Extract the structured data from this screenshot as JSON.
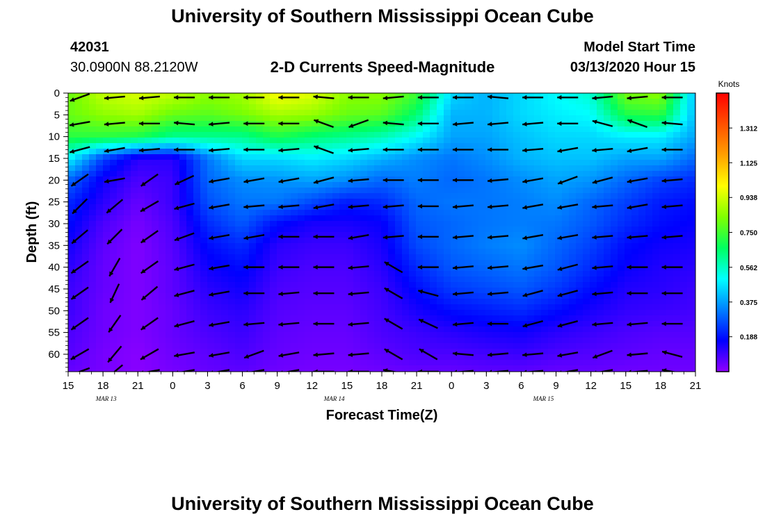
{
  "header": {
    "title_top": "University of Southern Mississippi Ocean Cube",
    "title_bottom": "University of Southern Mississippi Ocean Cube",
    "station_id": "42031",
    "station_coords": "30.0900N 88.2120W",
    "plot_title": "2-D Currents Speed-Magnitude",
    "model_start_label": "Model Start Time",
    "model_start_value": "03/13/2020 Hour 15"
  },
  "chart_data": {
    "type": "heatmap",
    "title": "2-D Currents Speed-Magnitude",
    "xlabel": "Forecast Time(Z)",
    "ylabel": "Depth (ft)",
    "x_tick_labels": [
      "15",
      "18",
      "21",
      "0",
      "3",
      "6",
      "9",
      "12",
      "15",
      "18",
      "21",
      "0",
      "3",
      "6",
      "9",
      "12",
      "15",
      "18",
      "21"
    ],
    "x_date_labels": [
      {
        "text": "MAR 13",
        "at_hour": 19
      },
      {
        "text": "MAR 14",
        "at_hour": 43
      },
      {
        "text": "MAR 15",
        "at_hour": 65
      }
    ],
    "x_range_hours": [
      0,
      54
    ],
    "y_ticks": [
      0,
      5,
      10,
      15,
      20,
      25,
      30,
      35,
      40,
      45,
      50,
      55,
      60
    ],
    "y_range": [
      0,
      64
    ],
    "y_inverted": true,
    "colorbar": {
      "unit": "Knots",
      "range": [
        0,
        1.5
      ],
      "ticks": [
        "1.312",
        "1.125",
        "0.938",
        "0.750",
        "0.562",
        "0.375",
        "0.188"
      ],
      "tick_values": [
        1.312,
        1.125,
        0.938,
        0.75,
        0.562,
        0.375,
        0.188
      ],
      "colors": [
        "#9000ff",
        "#0000ff",
        "#0080ff",
        "#00ffff",
        "#00ff60",
        "#80ff00",
        "#ffff00",
        "#ffa000",
        "#ff5000",
        "#ff0000"
      ]
    },
    "speed_samples": {
      "hours": [
        0,
        3,
        6,
        9,
        12,
        15,
        18,
        21,
        24,
        27,
        30,
        33,
        36,
        39,
        42,
        45,
        48,
        51,
        54
      ],
      "depths": [
        0,
        5,
        10,
        15,
        20,
        25,
        30,
        35,
        40,
        45,
        50,
        55,
        60,
        64
      ],
      "values_knots": [
        [
          0.8,
          0.92,
          0.95,
          0.92,
          0.85,
          0.88,
          1.0,
          0.96,
          0.85,
          0.85,
          0.75,
          0.45,
          0.4,
          0.45,
          0.5,
          0.55,
          0.82,
          0.85,
          0.4
        ],
        [
          0.8,
          0.85,
          0.88,
          0.8,
          0.78,
          0.82,
          0.88,
          0.86,
          0.8,
          0.78,
          0.65,
          0.4,
          0.4,
          0.45,
          0.48,
          0.5,
          0.7,
          0.72,
          0.4
        ],
        [
          0.72,
          0.72,
          0.7,
          0.62,
          0.62,
          0.62,
          0.7,
          0.65,
          0.62,
          0.58,
          0.5,
          0.38,
          0.38,
          0.42,
          0.45,
          0.45,
          0.48,
          0.48,
          0.38
        ],
        [
          0.5,
          0.25,
          0.12,
          0.12,
          0.32,
          0.45,
          0.45,
          0.48,
          0.45,
          0.4,
          0.35,
          0.32,
          0.35,
          0.4,
          0.42,
          0.42,
          0.38,
          0.38,
          0.3
        ],
        [
          0.3,
          0.15,
          0.08,
          0.1,
          0.3,
          0.35,
          0.36,
          0.38,
          0.35,
          0.3,
          0.33,
          0.3,
          0.32,
          0.35,
          0.38,
          0.36,
          0.3,
          0.25,
          0.22
        ],
        [
          0.22,
          0.12,
          0.05,
          0.1,
          0.27,
          0.32,
          0.32,
          0.26,
          0.2,
          0.22,
          0.3,
          0.32,
          0.32,
          0.33,
          0.35,
          0.3,
          0.25,
          0.2,
          0.18
        ],
        [
          0.18,
          0.08,
          0.03,
          0.08,
          0.22,
          0.28,
          0.18,
          0.14,
          0.14,
          0.16,
          0.28,
          0.3,
          0.32,
          0.33,
          0.32,
          0.28,
          0.22,
          0.18,
          0.16
        ],
        [
          0.15,
          0.06,
          0.02,
          0.07,
          0.18,
          0.22,
          0.12,
          0.1,
          0.1,
          0.14,
          0.26,
          0.3,
          0.33,
          0.35,
          0.3,
          0.25,
          0.18,
          0.15,
          0.14
        ],
        [
          0.12,
          0.05,
          0.02,
          0.06,
          0.15,
          0.18,
          0.1,
          0.08,
          0.08,
          0.12,
          0.22,
          0.28,
          0.3,
          0.32,
          0.28,
          0.22,
          0.16,
          0.13,
          0.12
        ],
        [
          0.1,
          0.05,
          0.02,
          0.06,
          0.12,
          0.15,
          0.08,
          0.07,
          0.07,
          0.1,
          0.18,
          0.24,
          0.26,
          0.28,
          0.24,
          0.18,
          0.13,
          0.12,
          0.1
        ],
        [
          0.1,
          0.04,
          0.02,
          0.05,
          0.1,
          0.12,
          0.07,
          0.06,
          0.06,
          0.09,
          0.14,
          0.18,
          0.2,
          0.22,
          0.18,
          0.14,
          0.11,
          0.1,
          0.09
        ],
        [
          0.08,
          0.04,
          0.02,
          0.05,
          0.08,
          0.1,
          0.06,
          0.05,
          0.05,
          0.08,
          0.1,
          0.12,
          0.14,
          0.15,
          0.12,
          0.1,
          0.08,
          0.07,
          0.07
        ],
        [
          0.07,
          0.03,
          0.01,
          0.04,
          0.06,
          0.08,
          0.05,
          0.04,
          0.04,
          0.06,
          0.08,
          0.08,
          0.09,
          0.1,
          0.08,
          0.07,
          0.06,
          0.05,
          0.05
        ],
        [
          0.05,
          0.03,
          0.01,
          0.03,
          0.05,
          0.06,
          0.04,
          0.03,
          0.03,
          0.04,
          0.05,
          0.05,
          0.06,
          0.06,
          0.05,
          0.05,
          0.04,
          0.04,
          0.04
        ]
      ]
    },
    "vectors": {
      "hours": [
        1,
        4,
        7,
        10,
        13,
        16,
        19,
        22,
        25,
        28,
        31,
        34,
        37,
        40,
        43,
        46,
        49,
        52
      ],
      "depths": [
        1,
        7,
        13,
        20,
        26,
        33,
        40,
        46,
        53,
        60,
        64
      ],
      "default_direction": "west",
      "direction_deg": [
        [
          200,
          185,
          185,
          180,
          180,
          180,
          180,
          175,
          180,
          185,
          180,
          180,
          175,
          180,
          180,
          185,
          185,
          180
        ],
        [
          190,
          185,
          180,
          175,
          185,
          180,
          180,
          160,
          200,
          175,
          180,
          185,
          185,
          185,
          180,
          165,
          160,
          175
        ],
        [
          195,
          190,
          185,
          180,
          185,
          180,
          185,
          160,
          185,
          180,
          180,
          180,
          180,
          185,
          190,
          185,
          190,
          180
        ],
        [
          215,
          190,
          215,
          205,
          190,
          190,
          190,
          195,
          185,
          180,
          180,
          180,
          185,
          190,
          200,
          195,
          190,
          185
        ],
        [
          225,
          220,
          210,
          195,
          190,
          185,
          185,
          190,
          185,
          185,
          180,
          185,
          185,
          190,
          190,
          185,
          190,
          185
        ],
        [
          220,
          225,
          215,
          200,
          190,
          190,
          180,
          180,
          190,
          185,
          180,
          185,
          185,
          190,
          190,
          185,
          185,
          185
        ],
        [
          215,
          240,
          215,
          195,
          190,
          180,
          180,
          180,
          185,
          150,
          180,
          185,
          185,
          190,
          195,
          185,
          180,
          180
        ],
        [
          215,
          245,
          220,
          195,
          190,
          180,
          185,
          180,
          185,
          150,
          165,
          185,
          185,
          195,
          195,
          185,
          180,
          180
        ],
        [
          215,
          235,
          215,
          195,
          190,
          185,
          185,
          180,
          185,
          150,
          155,
          185,
          180,
          195,
          195,
          185,
          185,
          180
        ],
        [
          210,
          230,
          210,
          190,
          190,
          200,
          190,
          185,
          185,
          150,
          150,
          175,
          185,
          185,
          190,
          200,
          185,
          165
        ],
        [
          200,
          220,
          190,
          190,
          190,
          190,
          190,
          180,
          180,
          170,
          180,
          185,
          185,
          185,
          190,
          190,
          185,
          170
        ]
      ]
    }
  }
}
